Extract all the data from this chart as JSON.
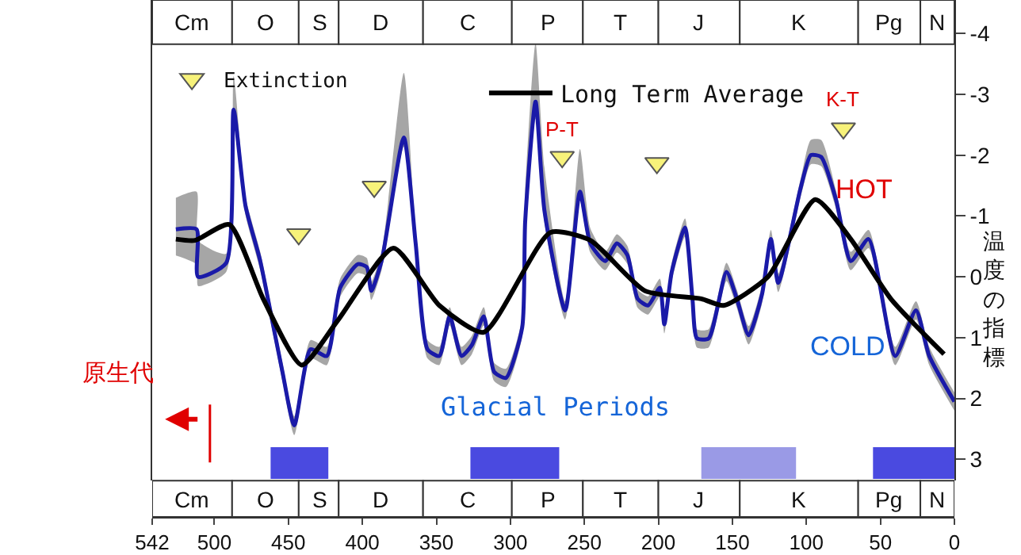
{
  "chart_data": {
    "type": "line",
    "ylabel": "温度の指標",
    "xlim": [
      542,
      0
    ],
    "xticks": [
      542,
      500,
      450,
      400,
      350,
      300,
      250,
      200,
      150,
      100,
      50,
      0
    ],
    "ylim": [
      3.35,
      -4.55
    ],
    "yticks": [
      -4,
      -3,
      -2,
      -1,
      0,
      1,
      2,
      3
    ],
    "grid": false,
    "legend": "top",
    "line_style": "solid",
    "series": [
      {
        "color": "#1a1aa8",
        "x": [
          526,
          512,
          511,
          492,
          487,
          479,
          469,
          460,
          454,
          446,
          435,
          424,
          415,
          403,
          397,
          394,
          387,
          372,
          364,
          356,
          348,
          341,
          333,
          326,
          318,
          311,
          303,
          292,
          290,
          283,
          277,
          263,
          253,
          246,
          236,
          228,
          221,
          214,
          207,
          199,
          196,
          191,
          182,
          177,
          174,
          166,
          154,
          147,
          139,
          130,
          124,
          119,
          104,
          97,
          90,
          80,
          70,
          58,
          40,
          26,
          17,
          0
        ],
        "values": [
          -0.78,
          -0.78,
          0,
          -0.23,
          -2.75,
          -1.17,
          -0.26,
          0.83,
          1.56,
          2.44,
          1.19,
          1.3,
          0.18,
          -0.21,
          -0.16,
          0.23,
          -0.26,
          -2.29,
          -0.55,
          1.19,
          1.3,
          0.65,
          1.3,
          1.12,
          0.65,
          1.56,
          1.66,
          0.83,
          -0.91,
          -2.88,
          -1.09,
          0.55,
          -1.4,
          -0.55,
          -0.26,
          -0.55,
          -0.36,
          0.36,
          0.47,
          0.18,
          0.78,
          -0.08,
          -0.81,
          0.36,
          1.01,
          1.01,
          -0.08,
          0.36,
          0.96,
          0.29,
          -0.62,
          0.1,
          -1.45,
          -2.0,
          -1.97,
          -1.27,
          -0.26,
          -0.62,
          1.3,
          0.55,
          1.3,
          2.05
        ],
        "lower": [
          -1.3,
          -1.4,
          -0.6,
          -0.38,
          -3.3,
          -1.32,
          -0.41,
          0.68,
          1.41,
          2.29,
          1.04,
          1.15,
          0.03,
          -0.36,
          -0.31,
          0.08,
          -0.41,
          -3.35,
          -0.7,
          1.04,
          1.15,
          0.5,
          1.15,
          0.97,
          0.5,
          1.41,
          1.51,
          0.68,
          -1.4,
          -3.84,
          -1.8,
          0.4,
          -2.1,
          -0.8,
          -0.41,
          -0.7,
          -0.51,
          0.21,
          0.32,
          0.03,
          0.63,
          -0.23,
          -0.96,
          0.21,
          0.86,
          0.86,
          -0.23,
          0.21,
          0.81,
          0.14,
          -0.77,
          -0.05,
          -1.6,
          -2.25,
          -2.25,
          -1.42,
          -0.41,
          -0.77,
          1.15,
          0.4,
          1.15,
          1.9
        ],
        "upper": [
          -0.35,
          -0.2,
          0.15,
          -0.08,
          -2.6,
          -1.02,
          -0.11,
          0.98,
          1.71,
          2.6,
          1.34,
          1.45,
          0.33,
          -0.06,
          -0.01,
          0.38,
          -0.11,
          -2.14,
          -0.4,
          1.34,
          1.45,
          0.8,
          1.45,
          1.27,
          0.8,
          1.71,
          1.81,
          0.98,
          -0.76,
          -2.6,
          -0.9,
          0.7,
          -1.25,
          -0.4,
          -0.11,
          -0.4,
          -0.21,
          0.51,
          0.62,
          0.33,
          0.93,
          0.07,
          -0.66,
          0.51,
          1.16,
          1.16,
          0.07,
          0.51,
          1.11,
          0.44,
          -0.47,
          0.25,
          -1.3,
          -1.85,
          -1.82,
          -1.12,
          -0.11,
          -0.47,
          1.45,
          0.7,
          1.45,
          2.2
        ]
      },
      {
        "name": "Long Term Average",
        "color": "#000000",
        "x": [
          526,
          513,
          490,
          467,
          441,
          417,
          379,
          348,
          318,
          273,
          246,
          209,
          171,
          156,
          126,
          94,
          70,
          43,
          7
        ],
        "values": [
          -0.62,
          -0.6,
          -0.86,
          0.36,
          1.45,
          0.73,
          -0.47,
          0.47,
          0.91,
          -0.73,
          -0.6,
          0.23,
          0.36,
          0.47,
          0,
          -1.27,
          -0.62,
          0.36,
          1.27
        ]
      },
      {
        "type": "scatter",
        "name": "Extinction",
        "color": "#f7f27a",
        "marker": "triangle",
        "x": [
          443,
          392,
          265,
          201,
          75
        ],
        "values": [
          -0.7,
          -1.48,
          -1.97,
          -1.87,
          -2.44
        ]
      }
    ],
    "annotations": [
      {
        "text": "P-T",
        "x": 265,
        "y": -1.97
      },
      {
        "text": "K-T",
        "x": 75,
        "y": -2.44
      },
      "HOT",
      "COLD",
      "Glacial Periods",
      "原生代"
    ],
    "ref_lines": [
      {
        "axis": "x",
        "value": 503,
        "color": "#e00000"
      }
    ],
    "bands": [
      {
        "axis": "x",
        "from": 542,
        "to": 488,
        "label": "Cm",
        "color": "#ffffff"
      },
      {
        "axis": "x",
        "from": 488,
        "to": 443,
        "label": "O",
        "color": "#ffffff"
      },
      {
        "axis": "x",
        "from": 443,
        "to": 416,
        "label": "S",
        "color": "#ffffff"
      },
      {
        "axis": "x",
        "from": 416,
        "to": 359,
        "label": "D",
        "color": "#ffffff"
      },
      {
        "axis": "x",
        "from": 359,
        "to": 299,
        "label": "C",
        "color": "#ffffff"
      },
      {
        "axis": "x",
        "from": 299,
        "to": 251,
        "label": "P",
        "color": "#ffffff"
      },
      {
        "axis": "x",
        "from": 251,
        "to": 200,
        "label": "T",
        "color": "#ffffff"
      },
      {
        "axis": "x",
        "from": 200,
        "to": 145,
        "label": "J",
        "color": "#ffffff"
      },
      {
        "axis": "x",
        "from": 145,
        "to": 65,
        "label": "K",
        "color": "#ffffff"
      },
      {
        "axis": "x",
        "from": 65,
        "to": 23,
        "label": "Pg",
        "color": "#ffffff"
      },
      {
        "axis": "x",
        "from": 23,
        "to": 0,
        "label": "N",
        "color": "#ffffff"
      },
      {
        "axis": "x",
        "from": 462,
        "to": 423,
        "color": "#4a4ae0"
      },
      {
        "axis": "x",
        "from": 327,
        "to": 267,
        "color": "#4a4ae0"
      },
      {
        "axis": "x",
        "from": 171,
        "to": 107,
        "color": "#9a9ae6"
      },
      {
        "axis": "x",
        "from": 55,
        "to": 0,
        "color": "#4a4ae0"
      }
    ]
  }
}
